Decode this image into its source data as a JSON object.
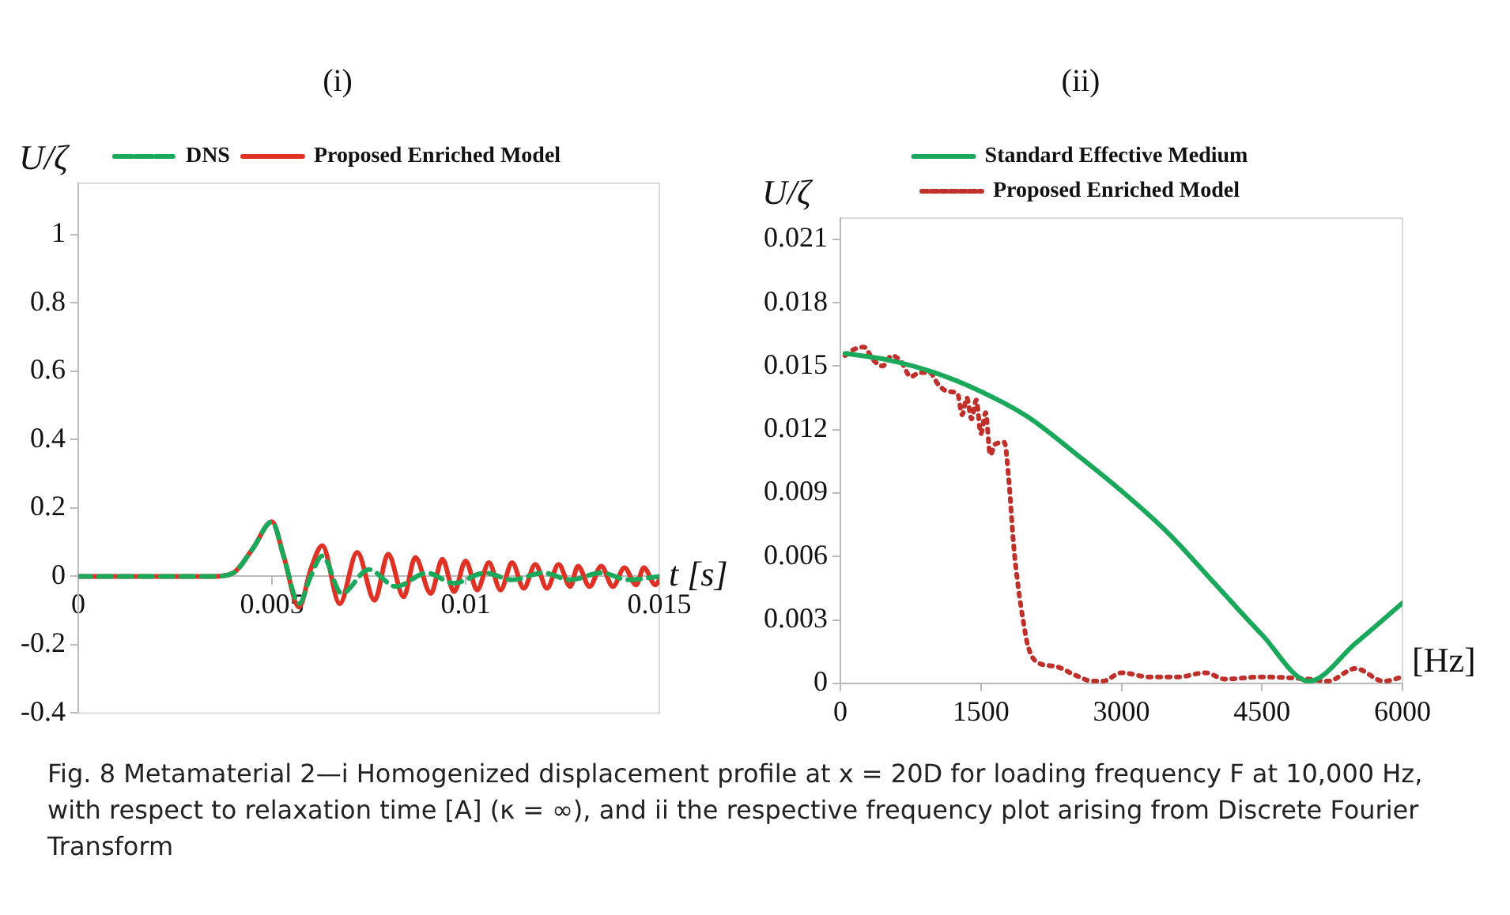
{
  "chart_data": [
    {
      "type": "line",
      "title": "(i)",
      "ylabel": "U/ζ",
      "xlabel": "t [s]",
      "xlim": [
        0,
        0.015
      ],
      "xticks": [
        0,
        0.005,
        0.01,
        0.015
      ],
      "ylim": [
        -0.4,
        1.15
      ],
      "yticks": [
        -0.4,
        -0.2,
        0,
        0.2,
        0.4,
        0.6,
        0.8,
        1
      ],
      "legend": "top",
      "marker": "none",
      "series": [
        {
          "name": "DNS",
          "color": "#1aa85a",
          "line_style": "dashed",
          "x": [
            0,
            0.0035,
            0.004,
            0.0045,
            0.005,
            0.0053,
            0.0057,
            0.006,
            0.0063,
            0.0068,
            0.0075,
            0.0082,
            0.009,
            0.0097,
            0.0105,
            0.0112,
            0.012,
            0.0127,
            0.0135,
            0.0142,
            0.015
          ],
          "values": [
            0,
            0,
            0.01,
            0.08,
            0.16,
            0.06,
            -0.08,
            0.0,
            0.06,
            -0.05,
            0.02,
            -0.03,
            0.01,
            -0.02,
            0.01,
            -0.01,
            0.01,
            -0.01,
            0.01,
            -0.01,
            0
          ]
        },
        {
          "name": "Proposed Enriched Model",
          "color": "#e03224",
          "line_style": "solid",
          "x": [
            0,
            0.0035,
            0.004,
            0.0045,
            0.005,
            0.0053,
            0.0057,
            0.006,
            0.0063,
            0.00675,
            0.0072,
            0.00765,
            0.008,
            0.0084,
            0.0087,
            0.0091,
            0.0094,
            0.0097,
            0.01,
            0.0103,
            0.0106,
            0.0109,
            0.0112,
            0.0115,
            0.0118,
            0.0121,
            0.0124,
            0.0127,
            0.0129,
            0.0132,
            0.0135,
            0.0138,
            0.0141,
            0.0144,
            0.0146,
            0.0149,
            0.015
          ],
          "values": [
            0,
            0,
            0.01,
            0.08,
            0.16,
            0.06,
            -0.09,
            0.02,
            0.09,
            -0.08,
            0.07,
            -0.07,
            0.065,
            -0.06,
            0.055,
            -0.05,
            0.05,
            -0.045,
            0.045,
            -0.04,
            0.04,
            -0.04,
            0.04,
            -0.035,
            0.035,
            -0.035,
            0.035,
            -0.03,
            0.03,
            -0.03,
            0.03,
            -0.03,
            0.025,
            -0.025,
            0.025,
            -0.025,
            -0.01
          ]
        }
      ],
      "annotations": [
        "Fig. 8  Metamaterial 2—i Homogenized displacement profile at x = 20D for loading frequency F at 10,000 Hz, with respect to relaxation time [A] (κ = ∞), and ii the respective frequency plot arising from Discrete Fourier Transform"
      ]
    },
    {
      "type": "line",
      "title": "(ii)",
      "ylabel": "U/ζ",
      "xlabel": "[Hz]",
      "xlim": [
        0,
        6000
      ],
      "xticks": [
        0,
        1500,
        3000,
        4500,
        6000
      ],
      "ylim": [
        0,
        0.022
      ],
      "yticks": [
        0,
        0.003,
        0.006,
        0.009,
        0.012,
        0.015,
        0.018,
        0.021
      ],
      "legend": "top",
      "marker": "none",
      "series": [
        {
          "name": "Standard Effective Medium",
          "color": "#1aa85a",
          "line_style": "solid",
          "x": [
            50,
            500,
            1000,
            1500,
            2000,
            2500,
            3000,
            3500,
            4000,
            4500,
            5000,
            5500,
            6000
          ],
          "values": [
            0.0156,
            0.0153,
            0.0147,
            0.0138,
            0.0126,
            0.0109,
            0.0091,
            0.0071,
            0.0047,
            0.0023,
            0.0001,
            0.0019,
            0.0038
          ]
        },
        {
          "name": "Proposed Enriched Model",
          "color": "#c0302a",
          "line_style": "dotted",
          "x": [
            50,
            150,
            250,
            350,
            450,
            550,
            650,
            750,
            850,
            950,
            1050,
            1150,
            1250,
            1300,
            1350,
            1400,
            1450,
            1500,
            1550,
            1600,
            1650,
            1750,
            1800,
            1850,
            1900,
            1950,
            2000,
            2100,
            2300,
            2500,
            2700,
            2800,
            3000,
            3300,
            3600,
            3900,
            4100,
            4500,
            5000,
            5200,
            5500,
            5800,
            6000
          ],
          "values": [
            0.0155,
            0.0158,
            0.0159,
            0.0153,
            0.015,
            0.0155,
            0.0152,
            0.0145,
            0.0147,
            0.0147,
            0.0141,
            0.0138,
            0.0137,
            0.0127,
            0.0135,
            0.0125,
            0.0134,
            0.0118,
            0.0128,
            0.0108,
            0.0113,
            0.0114,
            0.0095,
            0.0065,
            0.0045,
            0.003,
            0.0018,
            0.001,
            0.0008,
            0.0004,
            0.0001,
            0.0001,
            0.0005,
            0.0003,
            0.0003,
            0.0005,
            0.0002,
            0.0003,
            0.0002,
            0.0001,
            0.0007,
            0.0001,
            0.0003
          ]
        }
      ]
    }
  ]
}
